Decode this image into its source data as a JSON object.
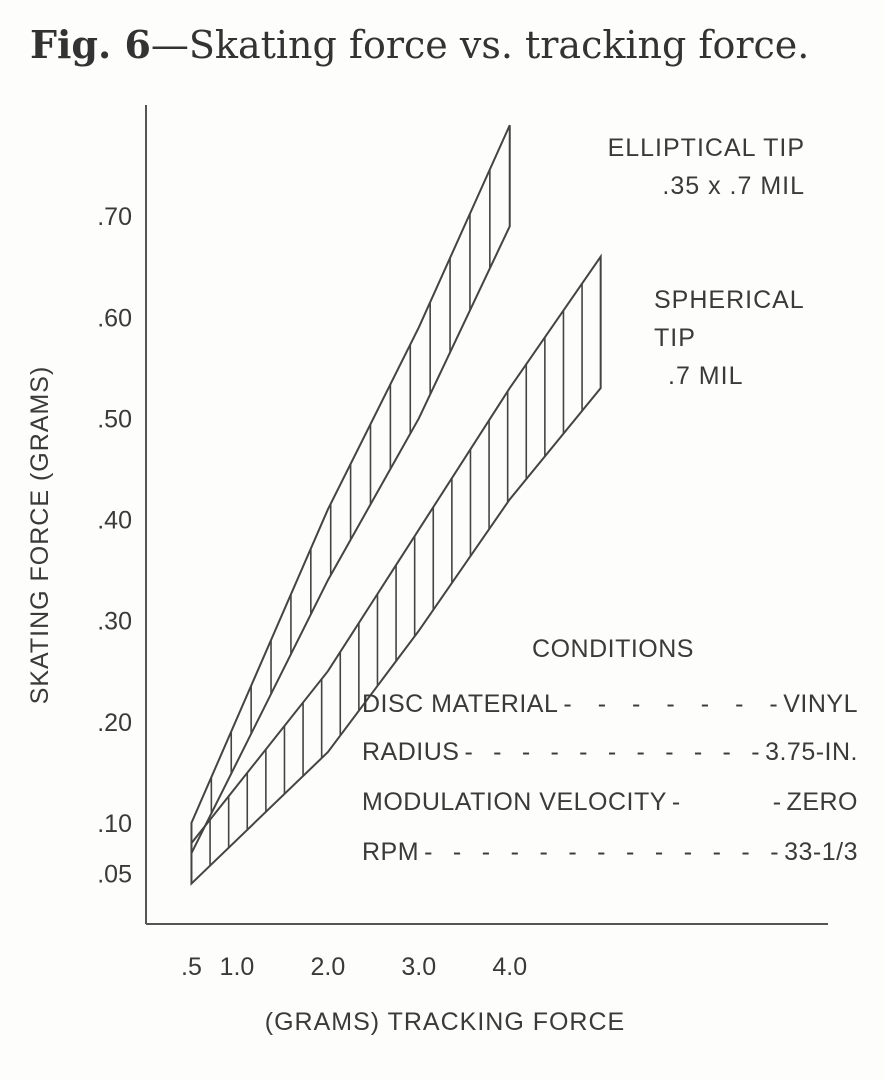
{
  "title_prefix": "Fig. 6",
  "title_text": "—Skating force vs. tracking force.",
  "chart_data": {
    "type": "area",
    "title": "Fig. 6—Skating force vs. tracking force.",
    "xlabel": "(GRAMS) TRACKING FORCE",
    "ylabel": "SKATING FORCE (GRAMS)",
    "x_ticks": [
      {
        "value": 0.5,
        "label": ".5"
      },
      {
        "value": 1.0,
        "label": "1.0"
      },
      {
        "value": 2.0,
        "label": "2.0"
      },
      {
        "value": 3.0,
        "label": "3.0"
      },
      {
        "value": 4.0,
        "label": "4.0"
      }
    ],
    "y_ticks": [
      {
        "value": 0.05,
        "label": ".05"
      },
      {
        "value": 0.1,
        "label": ".10"
      },
      {
        "value": 0.2,
        "label": ".20"
      },
      {
        "value": 0.3,
        "label": ".30"
      },
      {
        "value": 0.4,
        "label": ".40"
      },
      {
        "value": 0.5,
        "label": ".50"
      },
      {
        "value": 0.6,
        "label": ".60"
      },
      {
        "value": 0.7,
        "label": ".70"
      }
    ],
    "xlim": [
      0,
      7.5
    ],
    "ylim": [
      0,
      0.81
    ],
    "grid": false,
    "series": [
      {
        "name": "ELLIPTICAL TIP .35 x .7 MIL",
        "label_lines": [
          "ELLIPTICAL TIP",
          ".35 x .7 MIL"
        ],
        "upper": {
          "x": [
            0.5,
            2.0,
            3.0,
            4.0
          ],
          "y": [
            0.1,
            0.41,
            0.59,
            0.79
          ]
        },
        "lower": {
          "x": [
            0.5,
            2.0,
            3.0,
            4.0
          ],
          "y": [
            0.07,
            0.34,
            0.5,
            0.69
          ]
        }
      },
      {
        "name": "SPHERICAL TIP .7 MIL",
        "label_lines": [
          "SPHERICAL",
          "TIP",
          ".7 MIL"
        ],
        "upper": {
          "x": [
            0.5,
            2.0,
            3.0,
            4.0,
            5.0
          ],
          "y": [
            0.08,
            0.25,
            0.39,
            0.53,
            0.66
          ]
        },
        "lower": {
          "x": [
            0.5,
            2.0,
            3.0,
            4.0,
            5.0
          ],
          "y": [
            0.04,
            0.17,
            0.29,
            0.42,
            0.53
          ]
        }
      }
    ],
    "conditions": {
      "heading": "CONDITIONS",
      "rows": [
        {
          "label": "DISC MATERIAL",
          "dashes": "-------",
          "value": "VINYL"
        },
        {
          "label": "RADIUS",
          "dashes": "-----------",
          "value": "3.75-IN."
        },
        {
          "label": "MODULATION VELOCITY",
          "dashes": "--",
          "value": "ZERO"
        },
        {
          "label": "RPM",
          "dashes": "-------------",
          "value": "33-1/3"
        }
      ]
    }
  }
}
